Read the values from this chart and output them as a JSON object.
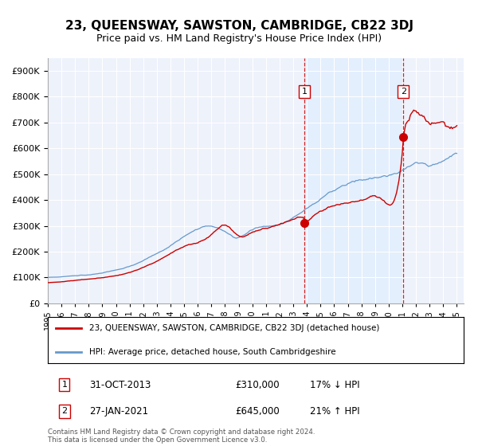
{
  "title": "23, QUEENSWAY, SAWSTON, CAMBRIDGE, CB22 3DJ",
  "subtitle": "Price paid vs. HM Land Registry's House Price Index (HPI)",
  "legend_label_red": "23, QUEENSWAY, SAWSTON, CAMBRIDGE, CB22 3DJ (detached house)",
  "legend_label_blue": "HPI: Average price, detached house, South Cambridgeshire",
  "annotation1_label": "1",
  "annotation1_date": "31-OCT-2013",
  "annotation1_price": "£310,000",
  "annotation1_hpi": "17% ↓ HPI",
  "annotation1_year": 2013.83,
  "annotation1_value": 310000,
  "annotation2_label": "2",
  "annotation2_date": "27-JAN-2021",
  "annotation2_price": "£645,000",
  "annotation2_hpi": "21% ↑ HPI",
  "annotation2_year": 2021.08,
  "annotation2_value": 645000,
  "footer": "Contains HM Land Registry data © Crown copyright and database right 2024.\nThis data is licensed under the Open Government Licence v3.0.",
  "red_color": "#cc0000",
  "blue_color": "#6699cc",
  "shade_color": "#ddeeff",
  "background_color": "#eef2fb",
  "ylim": [
    0,
    950000
  ],
  "xlim_start": 1995.0,
  "xlim_end": 2025.5
}
